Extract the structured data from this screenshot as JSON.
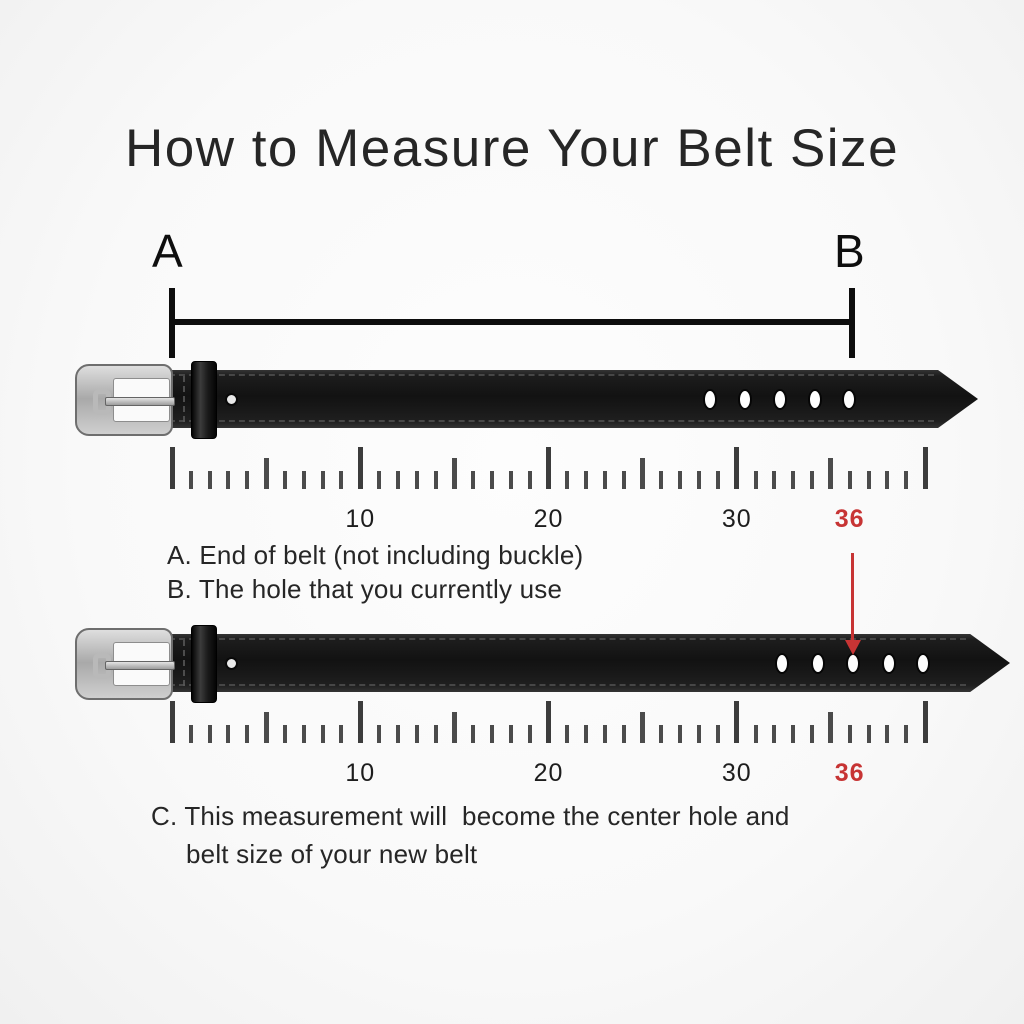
{
  "page": {
    "title": "How to Measure Your Belt Size"
  },
  "measurement": {
    "start_label": "A",
    "end_label": "B"
  },
  "colors": {
    "highlight_red": "#c73434",
    "measure_line": "#0d0d0d",
    "tick_gray": "#4b4b4b",
    "text_dark": "#262626"
  },
  "ruler_spec": {
    "min": 0,
    "max": 40,
    "minor_step": 1,
    "medium_step": 5,
    "major_step": 10
  },
  "rulers": [
    {
      "name": "ruler-top",
      "labels": [
        {
          "text": "10",
          "value": 10,
          "highlight": false
        },
        {
          "text": "20",
          "value": 20,
          "highlight": false
        },
        {
          "text": "30",
          "value": 30,
          "highlight": false
        },
        {
          "text": "36",
          "value": 36,
          "highlight": true
        }
      ]
    },
    {
      "name": "ruler-bottom",
      "labels": [
        {
          "text": "10",
          "value": 10,
          "highlight": false
        },
        {
          "text": "20",
          "value": 20,
          "highlight": false
        },
        {
          "text": "30",
          "value": 30,
          "highlight": false
        },
        {
          "text": "36",
          "value": 36,
          "highlight": true
        }
      ]
    }
  ],
  "belts": [
    {
      "name": "current-belt",
      "hole_count": 5
    },
    {
      "name": "new-belt",
      "hole_count": 5
    }
  ],
  "arrow": {
    "points_to_value": 36
  },
  "annotations": {
    "line_a": "A. End of belt (not including buckle)",
    "line_b": "B. The hole that you currently use",
    "line_c1": "C. This measurement will  become the center hole and",
    "line_c2": "belt size of your new belt"
  }
}
